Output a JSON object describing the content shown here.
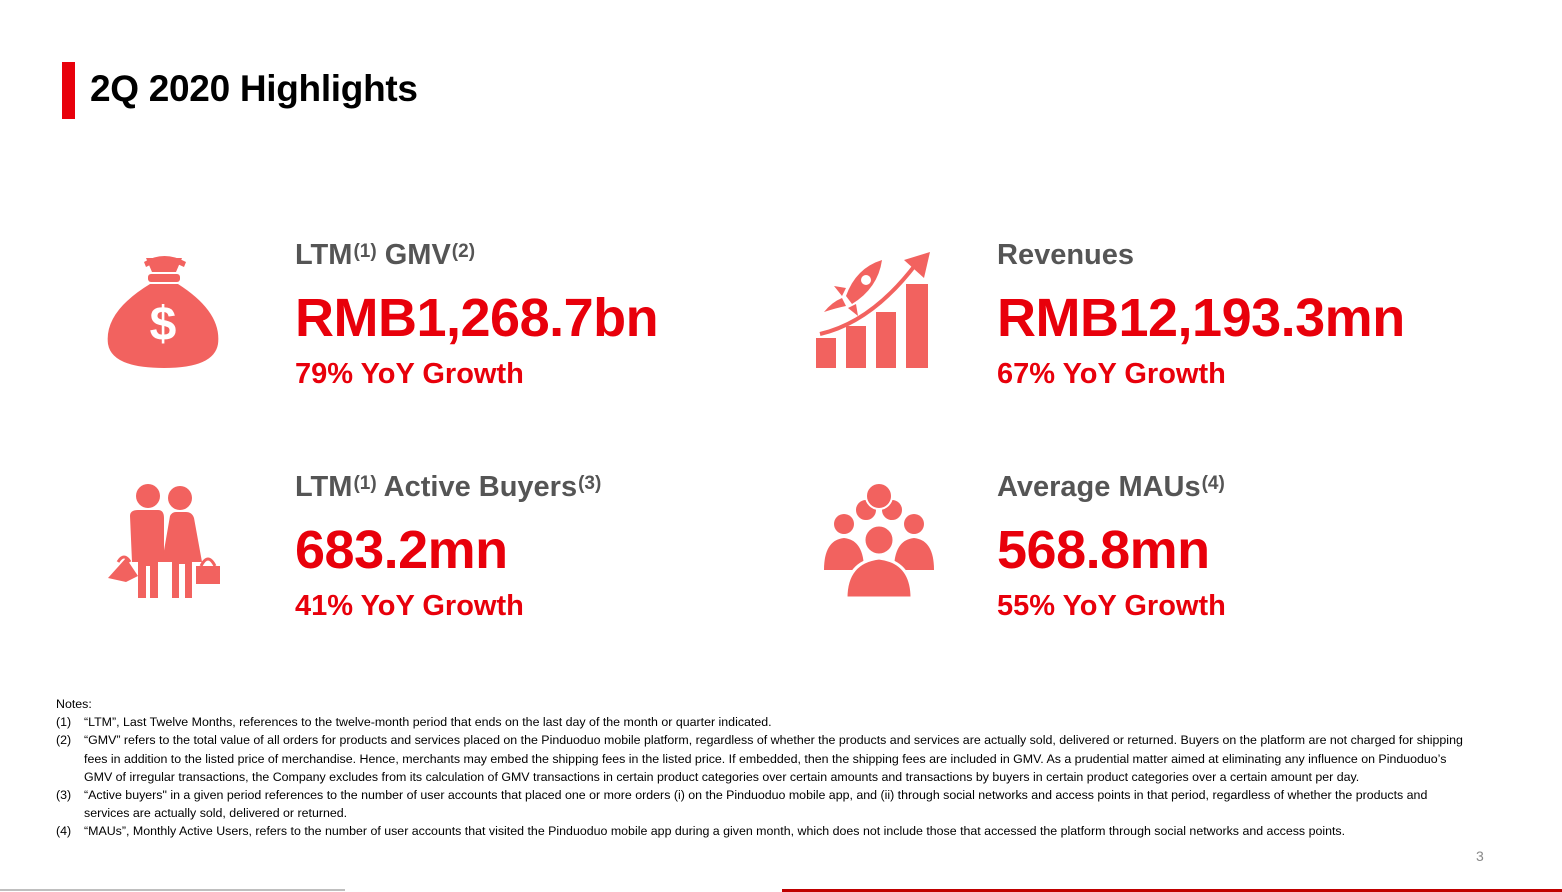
{
  "title": "2Q 2020 Highlights",
  "metrics": {
    "gmv": {
      "label_a": "LTM",
      "sup_a": "(1)",
      "label_b": " GMV",
      "sup_b": "(2)",
      "value": "RMB1,268.7bn",
      "growth": "79% YoY Growth",
      "icon": "money-bag-icon"
    },
    "revenues": {
      "label": "Revenues",
      "value": "RMB12,193.3mn",
      "growth": "67% YoY Growth",
      "icon": "rocket-growth-chart-icon"
    },
    "buyers": {
      "label_a": "LTM",
      "sup_a": "(1)",
      "label_b": " Active Buyers",
      "sup_b": "(3)",
      "value": "683.2mn",
      "growth": "41% YoY Growth",
      "icon": "shoppers-couple-icon"
    },
    "maus": {
      "label": "Average MAUs",
      "sup": "(4)",
      "value": "568.8mn",
      "growth": "55% YoY Growth",
      "icon": "user-group-icon"
    }
  },
  "notes": {
    "heading": "Notes:",
    "items": [
      {
        "num": "(1)",
        "text": "“LTM”, Last Twelve Months, references to the twelve-month period that ends on the last day of the month or quarter indicated."
      },
      {
        "num": "(2)",
        "text": "“GMV” refers to the total value of all orders for products and services placed on the Pinduoduo mobile platform, regardless of whether the products and services are actually sold, delivered or returned. Buyers on the platform are not charged for shipping fees in addition to the listed price of merchandise. Hence, merchants may embed the shipping fees in the listed price. If embedded, then the shipping fees are included in GMV. As a prudential matter aimed at eliminating any influence on Pinduoduo’s GMV of irregular transactions, the Company excludes from its calculation of GMV transactions in certain product categories over certain amounts and transactions by buyers in certain product categories over a certain amount per day."
      },
      {
        "num": "(3)",
        "text": "“Active buyers\" in a given period references to the number of user accounts that placed one or more orders (i) on the Pinduoduo mobile app, and (ii) through social networks and access points in that period, regardless of whether the products and services are actually sold, delivered or returned."
      },
      {
        "num": "(4)",
        "text": "“MAUs”, Monthly Active Users, refers to the number of user accounts that visited the Pinduoduo mobile app during a given month, which does not include those that accessed the platform through social networks and access points."
      }
    ]
  },
  "page_number": "3",
  "colors": {
    "accent": "#e8000b",
    "icon": "#f2625f",
    "label": "#555555"
  }
}
